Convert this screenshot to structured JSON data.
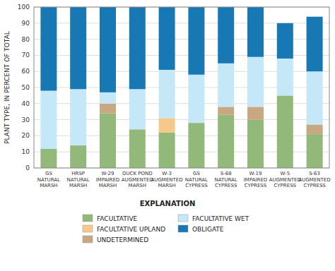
{
  "chart_data": {
    "type": "bar",
    "stacked": true,
    "grid": true,
    "y_label": "PLANT TYPE, IN PERCENT OF TOTAL",
    "legend_title": "EXPLANATION",
    "categories": [
      "GS\nNATURAL\nMARSH",
      "HRSP\nNATURAL\nMARSH",
      "W-29\nIMPAIRED\nMARSH",
      "DUCK POND\nAUGMENTED\nMARSH",
      "W-3\nAUGMENTED\nMARSH",
      "GS\nNATURAL\nCYPRESS",
      "S-68\nNATURAL\nCYPRESS",
      "W-19\nIMPAIRED\nCYPRESS",
      "W-5\nAUGMENTED\nCYPRESS",
      "S-63\nAUGMENTED\nCYPRESS"
    ],
    "series": [
      {
        "name": "FACULTATIVE",
        "color": "#92b87a",
        "values": [
          12,
          14,
          34,
          24,
          22,
          28,
          33,
          30,
          45,
          21
        ]
      },
      {
        "name": "FACULTATIVE UPLAND",
        "color": "#f5c98a",
        "values": [
          0,
          0,
          0,
          0,
          9,
          0,
          0,
          0,
          0,
          0
        ]
      },
      {
        "name": "UNDETERMINED",
        "color": "#c8a882",
        "values": [
          0,
          0,
          6,
          0,
          0,
          0,
          5,
          8,
          0,
          6
        ]
      },
      {
        "name": "FACULTATIVE WET",
        "color": "#c5e8f8",
        "values": [
          36,
          35,
          7,
          25,
          30,
          30,
          27,
          31,
          23,
          33
        ]
      },
      {
        "name": "OBLIGATE",
        "color": "#1878b4",
        "values": [
          52,
          51,
          53,
          51,
          39,
          42,
          35,
          31,
          22,
          34
        ]
      }
    ],
    "ylim": [
      0,
      100
    ],
    "yticks": [
      0,
      10,
      20,
      30,
      40,
      50,
      60,
      70,
      80,
      90,
      100
    ]
  }
}
